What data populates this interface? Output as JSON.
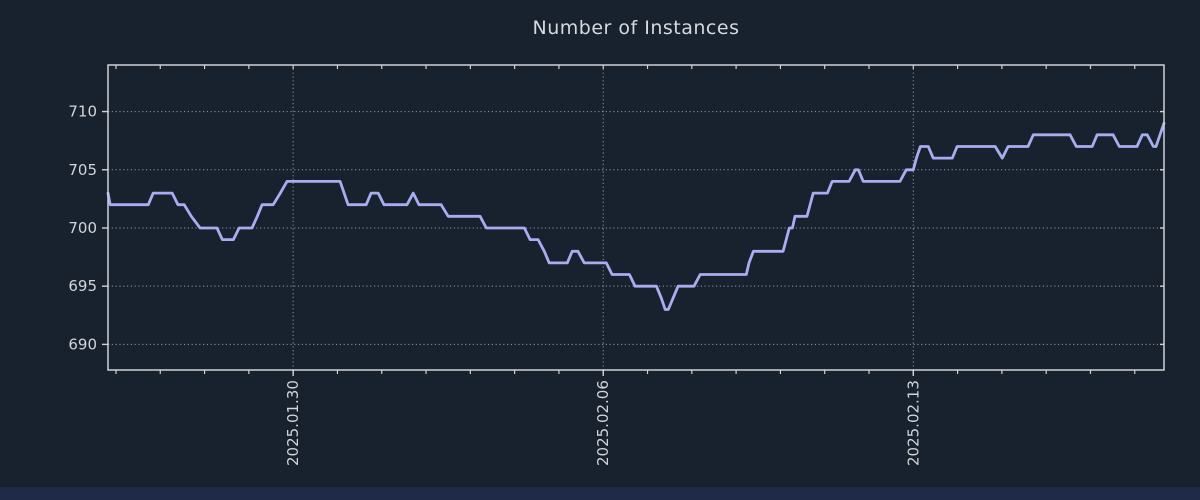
{
  "page": {
    "background": "#18212e",
    "footer_bar_color": "#1e2a47"
  },
  "chart_data": {
    "type": "line",
    "title": "Number of Instances",
    "title_color": "#d6d9dd",
    "x_unit": "days since 2025-01-30",
    "xlim": [
      -4.18,
      19.66
    ],
    "ylim": [
      687.8,
      714.0
    ],
    "x_ticks": [
      {
        "d": 0,
        "label": "2025.01.30"
      },
      {
        "d": 7,
        "label": "2025.02.06"
      },
      {
        "d": 14,
        "label": "2025.02.13"
      }
    ],
    "x_minor_tick_interval_days": 1,
    "y_ticks": [
      690,
      695,
      700,
      705,
      710
    ],
    "grid": true,
    "legend": false,
    "grid_color": "#a7adb6",
    "axis_color": "#cfd2d6",
    "tick_label_color": "#d2d5da",
    "series": [
      {
        "name": "Number of Instances",
        "color": "#a8adf0",
        "points": [
          [
            -4.18,
            703
          ],
          [
            -4.13,
            702
          ],
          [
            -3.27,
            702
          ],
          [
            -3.16,
            703
          ],
          [
            -2.73,
            703
          ],
          [
            -2.6,
            702
          ],
          [
            -2.46,
            702
          ],
          [
            -2.3,
            701
          ],
          [
            -2.1,
            700
          ],
          [
            -1.72,
            700
          ],
          [
            -1.6,
            699
          ],
          [
            -1.35,
            699
          ],
          [
            -1.22,
            700
          ],
          [
            -0.93,
            700
          ],
          [
            -0.81,
            701
          ],
          [
            -0.7,
            702
          ],
          [
            -0.45,
            702
          ],
          [
            -0.29,
            703
          ],
          [
            -0.14,
            704
          ],
          [
            1.06,
            704
          ],
          [
            1.15,
            703
          ],
          [
            1.24,
            702
          ],
          [
            1.65,
            702
          ],
          [
            1.76,
            703
          ],
          [
            1.92,
            703
          ],
          [
            2.05,
            702
          ],
          [
            2.57,
            702
          ],
          [
            2.71,
            703
          ],
          [
            2.84,
            702
          ],
          [
            3.34,
            702
          ],
          [
            3.5,
            701
          ],
          [
            4.22,
            701
          ],
          [
            4.36,
            700
          ],
          [
            5.22,
            700
          ],
          [
            5.35,
            699
          ],
          [
            5.53,
            699
          ],
          [
            5.67,
            698
          ],
          [
            5.78,
            697
          ],
          [
            6.19,
            697
          ],
          [
            6.3,
            698
          ],
          [
            6.43,
            698
          ],
          [
            6.57,
            697
          ],
          [
            7.07,
            697
          ],
          [
            7.2,
            696
          ],
          [
            7.59,
            696
          ],
          [
            7.72,
            695
          ],
          [
            8.2,
            695
          ],
          [
            8.31,
            694
          ],
          [
            8.4,
            693
          ],
          [
            8.47,
            693
          ],
          [
            8.58,
            694
          ],
          [
            8.69,
            695
          ],
          [
            9.05,
            695
          ],
          [
            9.19,
            696
          ],
          [
            10.23,
            696
          ],
          [
            10.29,
            697
          ],
          [
            10.39,
            698
          ],
          [
            11.06,
            698
          ],
          [
            11.13,
            699
          ],
          [
            11.2,
            700
          ],
          [
            11.27,
            700
          ],
          [
            11.33,
            701
          ],
          [
            11.6,
            701
          ],
          [
            11.67,
            702
          ],
          [
            11.74,
            703
          ],
          [
            12.06,
            703
          ],
          [
            12.17,
            704
          ],
          [
            12.55,
            704
          ],
          [
            12.69,
            705
          ],
          [
            12.76,
            705
          ],
          [
            12.87,
            704
          ],
          [
            13.7,
            704
          ],
          [
            13.84,
            705
          ],
          [
            14.0,
            705
          ],
          [
            14.07,
            706
          ],
          [
            14.16,
            707
          ],
          [
            14.34,
            707
          ],
          [
            14.45,
            706
          ],
          [
            14.88,
            706
          ],
          [
            14.99,
            707
          ],
          [
            15.85,
            707
          ],
          [
            16.01,
            706
          ],
          [
            16.14,
            707
          ],
          [
            16.59,
            707
          ],
          [
            16.71,
            708
          ],
          [
            17.54,
            708
          ],
          [
            17.68,
            707
          ],
          [
            18.04,
            707
          ],
          [
            18.15,
            708
          ],
          [
            18.51,
            708
          ],
          [
            18.65,
            707
          ],
          [
            19.05,
            707
          ],
          [
            19.17,
            708
          ],
          [
            19.28,
            708
          ],
          [
            19.42,
            707
          ],
          [
            19.48,
            707
          ],
          [
            19.57,
            708
          ],
          [
            19.66,
            709
          ]
        ]
      }
    ]
  }
}
